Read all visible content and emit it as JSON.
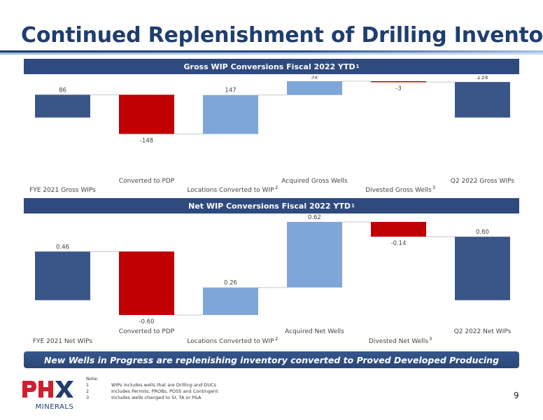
{
  "page": {
    "title": "Continued Replenishment of Drilling Inventory",
    "banner": "New Wells in Progress are replenishing inventory converted to Proved Developed Producing",
    "page_number": "9"
  },
  "chart_data": [
    {
      "type": "waterfall",
      "title": "Gross WIP Conversions Fiscal 2022 YTD",
      "title_footnote": "1",
      "categories": [
        "FYE 2021 Gross WIPs",
        "Converted to PDP",
        "Locations Converted to WIP",
        "Acquired Gross Wells",
        "Divested Gross Wells",
        "Q2 2022 Gross WIPs"
      ],
      "category_footnotes": [
        "",
        "",
        "2",
        "",
        "3",
        ""
      ],
      "values": [
        86,
        -148,
        147,
        52,
        -3,
        134
      ],
      "value_labels": [
        "86",
        "-148",
        "147",
        "52",
        "-3",
        "134"
      ],
      "kinds": [
        "total",
        "decrease",
        "increase",
        "increase",
        "decrease",
        "total"
      ],
      "ylim": [
        -148,
        137
      ],
      "colors": {
        "total": "#3a5689",
        "decrease": "#c00000",
        "increase": "#7fa6d9"
      }
    },
    {
      "type": "waterfall",
      "title": "Net WIP Conversions Fiscal 2022 YTD",
      "title_footnote": "1",
      "categories": [
        "FYE 2021 Net WIPs",
        "Converted to PDP",
        "Locations Converted to WIP",
        "Acquired Net Wells",
        "Divested Net Wells",
        "Q2 2022 Net WIPs"
      ],
      "category_footnotes": [
        "",
        "",
        "2",
        "",
        "3",
        ""
      ],
      "values": [
        0.46,
        -0.6,
        0.26,
        0.62,
        -0.14,
        0.6
      ],
      "value_labels": [
        "0.46",
        "-0.60",
        "0.26",
        "0.62",
        "-0.14",
        "0.60"
      ],
      "kinds": [
        "total",
        "decrease",
        "increase",
        "increase",
        "decrease",
        "total"
      ],
      "ylim": [
        -0.14,
        0.74
      ],
      "colors": {
        "total": "#3a5689",
        "decrease": "#c00000",
        "increase": "#7fa6d9"
      }
    }
  ],
  "notes": {
    "heading": "Note:",
    "items": [
      {
        "num": "1",
        "text": "WIPs includes wells that are Drilling and DUCs"
      },
      {
        "num": "2",
        "text": "Includes Permits, PROBs, POSS and Contingent"
      },
      {
        "num": "3",
        "text": "Includes wells changed to SI, TA or P&A"
      }
    ]
  },
  "logo": {
    "mark": "PHX",
    "subtitle": "MINERALS",
    "colors": {
      "red": "#d0202f",
      "navy": "#1f3e6e"
    }
  }
}
